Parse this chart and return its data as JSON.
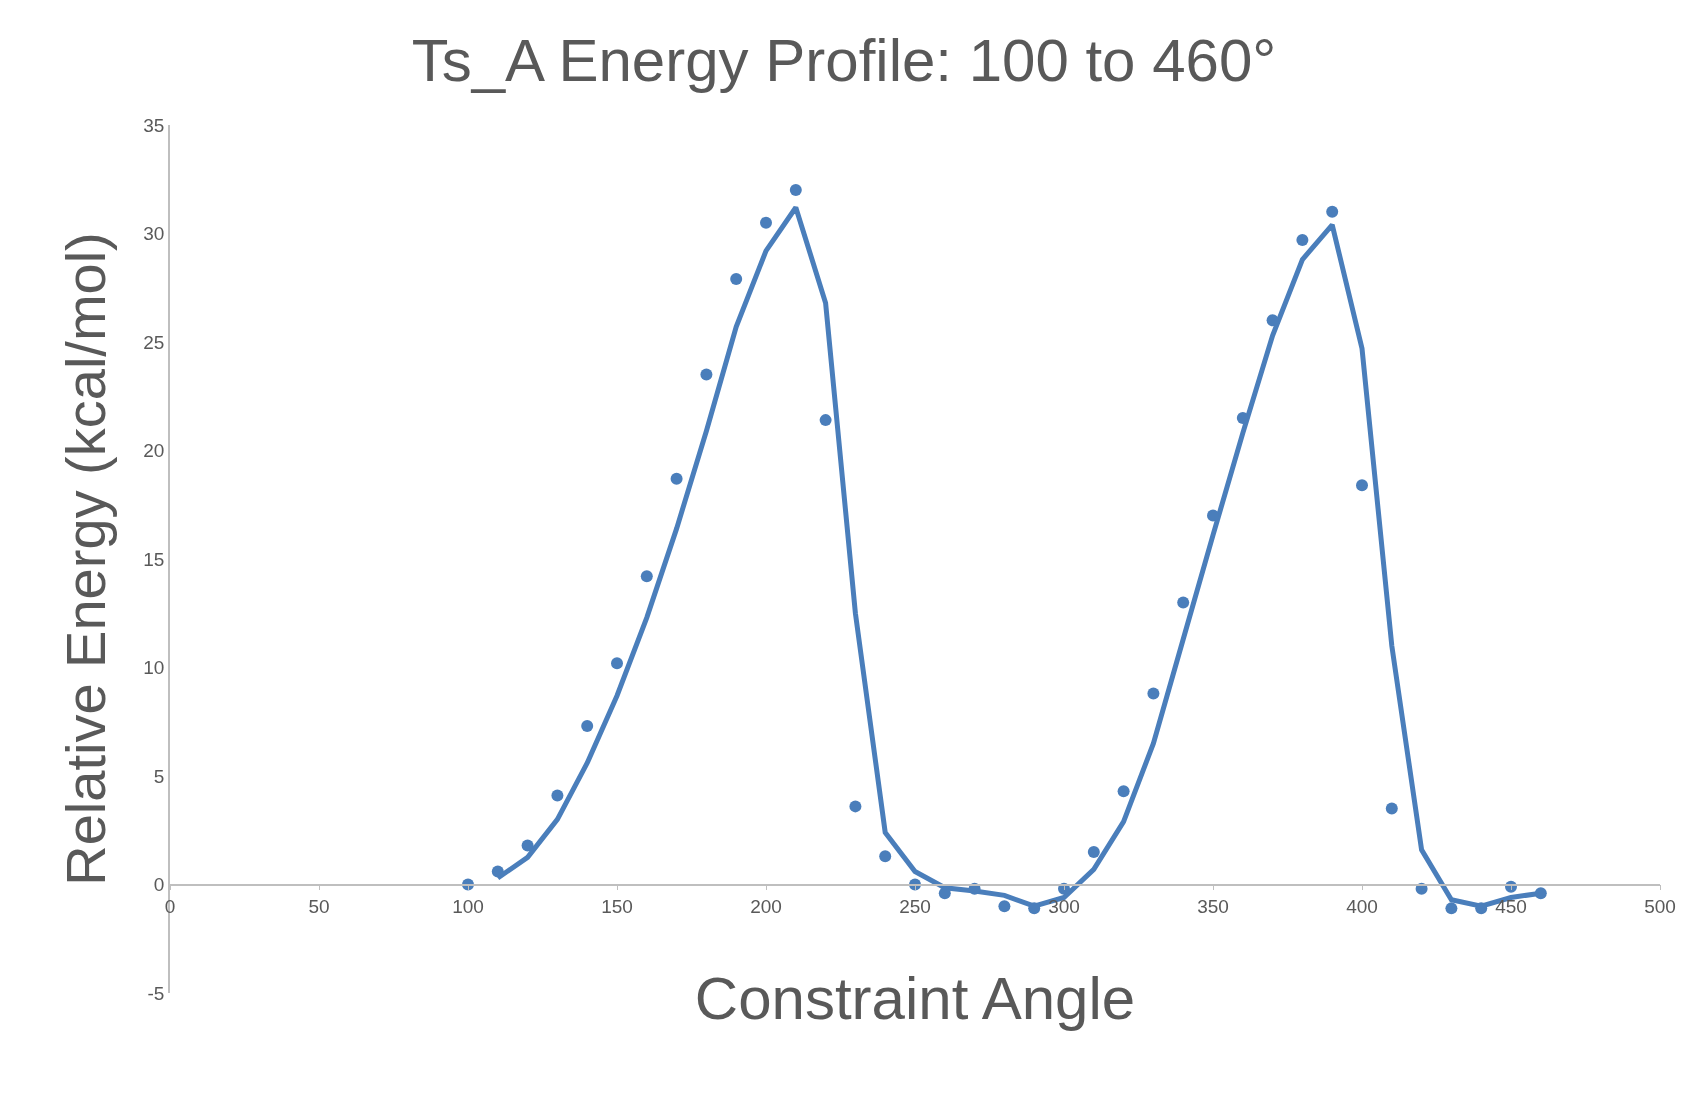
{
  "chart_data": {
    "type": "scatter",
    "title": "Ts_A Energy Profile: 100 to 460°",
    "xlabel": "Constraint Angle",
    "ylabel": "Relative Energy (kcal/mol)",
    "xlim": [
      0,
      500
    ],
    "xticks": [
      0,
      50,
      100,
      150,
      200,
      250,
      300,
      350,
      400,
      450,
      500
    ],
    "ylim": [
      -5,
      35
    ],
    "yticks": [
      -5,
      0,
      5,
      10,
      15,
      20,
      25,
      30,
      35
    ],
    "series": [
      {
        "marker": "circle",
        "color": "#4a7ebb",
        "x": [
          100,
          110,
          120,
          130,
          140,
          150,
          160,
          170,
          180,
          190,
          200,
          210,
          220,
          230,
          240,
          250,
          260,
          270,
          280,
          290,
          300,
          310,
          320,
          330,
          340,
          350,
          360,
          370,
          380,
          390,
          400,
          410,
          420,
          430,
          440,
          450,
          460
        ],
        "values": [
          0,
          0.6,
          1.8,
          4.1,
          7.3,
          10.2,
          14.2,
          18.7,
          23.5,
          27.9,
          30.5,
          32.0,
          21.4,
          3.6,
          1.3,
          0,
          -0.4,
          -0.2,
          -1.0,
          -1.1,
          -0.2,
          1.5,
          4.3,
          8.8,
          13.0,
          17.0,
          21.5,
          26.0,
          29.7,
          31.0,
          18.4,
          3.5,
          -0.2,
          -1.1,
          -1.1,
          -0.1,
          -0.4
        ]
      },
      {
        "type": "line",
        "marker": "none",
        "line_style": "solid",
        "color": "#4a7ebb",
        "x": [
          110,
          120,
          130,
          140,
          150,
          160,
          170,
          180,
          190,
          200,
          210,
          220,
          230,
          240,
          250,
          260,
          270,
          280,
          290,
          300,
          310,
          320,
          330,
          340,
          350,
          360,
          370,
          380,
          390,
          400,
          410,
          420,
          430,
          440,
          450,
          460
        ],
        "values": [
          0.3,
          1.25,
          3.0,
          5.6,
          8.7,
          12.3,
          16.4,
          20.9,
          25.7,
          29.2,
          31.2,
          26.8,
          12.5,
          2.4,
          0.6,
          -0.15,
          -0.3,
          -0.5,
          -1.0,
          -0.6,
          0.7,
          2.9,
          6.5,
          11.3,
          16.1,
          20.8,
          25.3,
          28.8,
          30.4,
          24.7,
          11.0,
          1.6,
          -0.7,
          -1.0,
          -0.6,
          -0.4
        ]
      }
    ]
  }
}
